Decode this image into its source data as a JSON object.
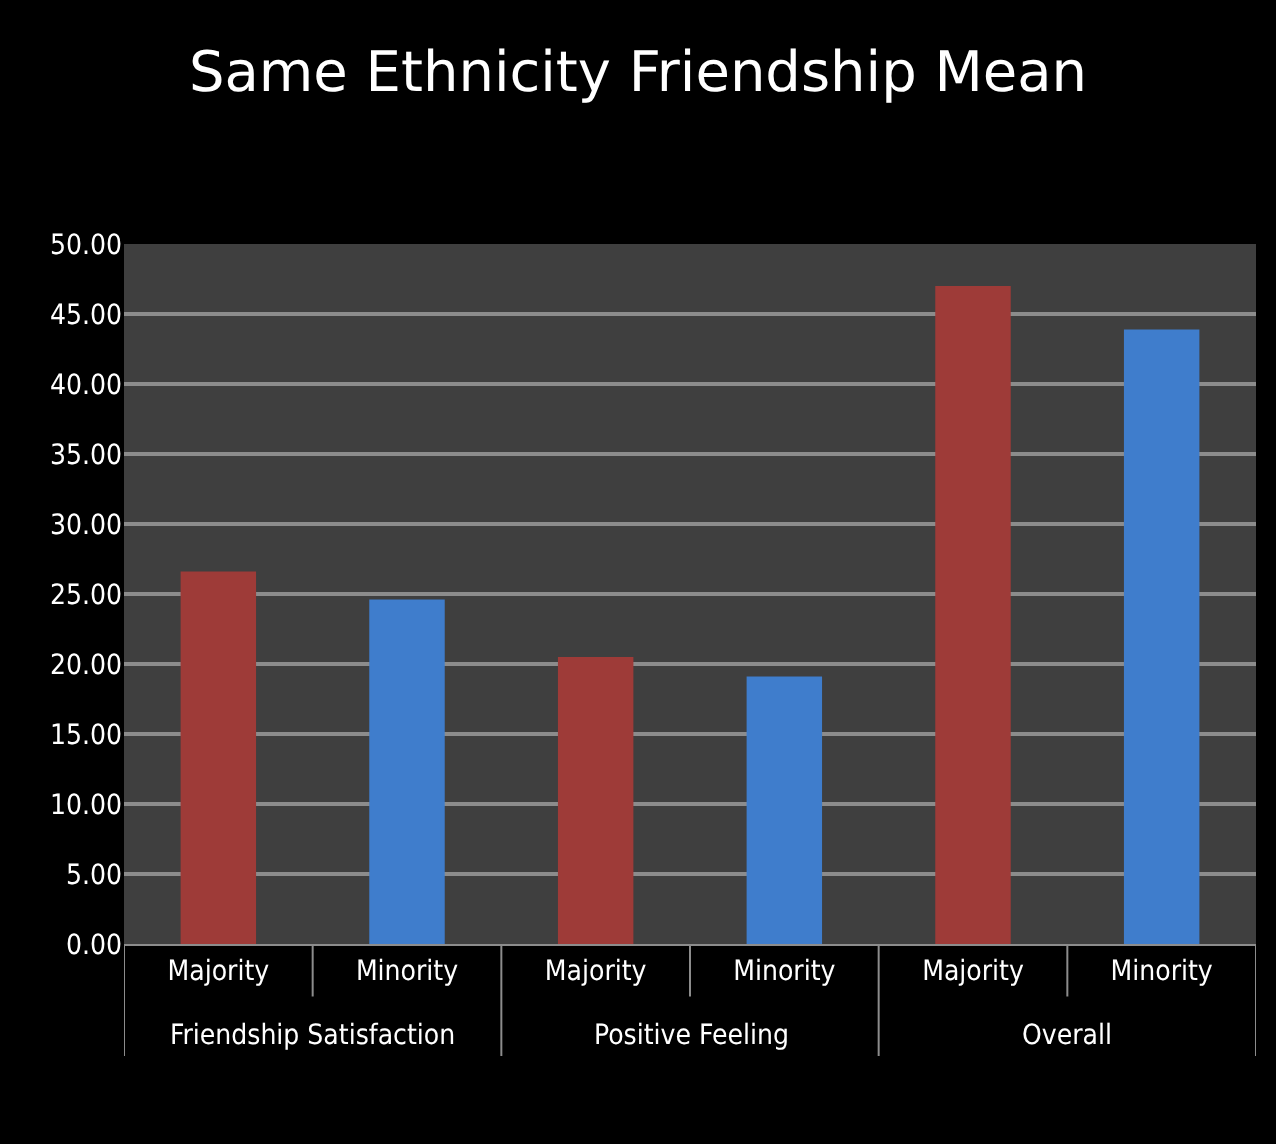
{
  "chart_data": {
    "type": "bar",
    "title": "Same Ethnicity Friendship Mean",
    "categories": [
      "Majority",
      "Minority",
      "Majority",
      "Minority",
      "Majority",
      "Minority"
    ],
    "values": [
      26.6,
      24.6,
      20.5,
      19.1,
      47.0,
      43.9
    ],
    "colors": [
      "#9e3b38",
      "#3f7dcc",
      "#9e3b38",
      "#3f7dcc",
      "#9e3b38",
      "#3f7dcc"
    ],
    "annotations": [
      "Friendship Satisfaction",
      "Positive Feeling",
      "Overall"
    ],
    "ylim": [
      0,
      50
    ],
    "yticks": [
      {
        "value": 0,
        "label": "0.00"
      },
      {
        "value": 5,
        "label": "5.00"
      },
      {
        "value": 10,
        "label": "10.00"
      },
      {
        "value": 15,
        "label": "15.00"
      },
      {
        "value": 20,
        "label": "20.00"
      },
      {
        "value": 25,
        "label": "25.00"
      },
      {
        "value": 30,
        "label": "30.00"
      },
      {
        "value": 35,
        "label": "35.00"
      },
      {
        "value": 40,
        "label": "40.00"
      },
      {
        "value": 45,
        "label": "45.00"
      },
      {
        "value": 50,
        "label": "50.00"
      }
    ],
    "grid": "y"
  }
}
